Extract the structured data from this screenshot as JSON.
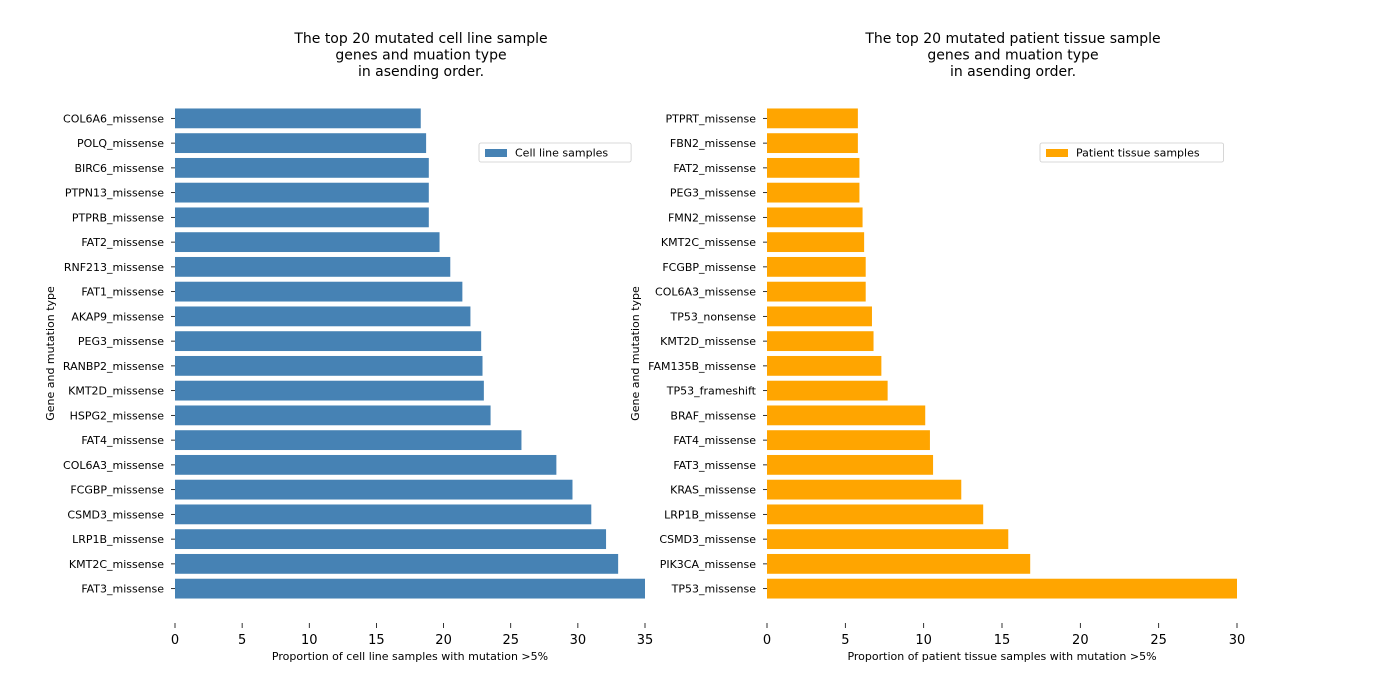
{
  "chart_data": [
    {
      "type": "bar",
      "orientation": "horizontal",
      "title": [
        "The top 20 mutated cell line sample",
        "genes and muation type",
        "in asending order."
      ],
      "xlabel": "Proportion of cell line samples with mutation >5%",
      "ylabel": "Gene and mutation type",
      "xlim": [
        0,
        35
      ],
      "xticks": [
        0,
        5,
        10,
        15,
        20,
        25,
        30,
        35
      ],
      "legend": {
        "label": "Cell line samples",
        "placement": "upper-right"
      },
      "color": "#4682b4",
      "grid": false,
      "categories": [
        "COL6A6_missense",
        "POLQ_missense",
        "BIRC6_missense",
        "PTPN13_missense",
        "PTPRB_missense",
        "FAT2_missense",
        "RNF213_missense",
        "FAT1_missense",
        "AKAP9_missense",
        "PEG3_missense",
        "RANBP2_missense",
        "KMT2D_missense",
        "HSPG2_missense",
        "FAT4_missense",
        "COL6A3_missense",
        "FCGBP_missense",
        "CSMD3_missense",
        "LRP1B_missense",
        "KMT2C_missense",
        "FAT3_missense"
      ],
      "values": [
        18.3,
        18.7,
        18.9,
        18.9,
        18.9,
        19.7,
        20.5,
        21.4,
        22.0,
        22.8,
        22.9,
        23.0,
        23.5,
        25.8,
        28.4,
        29.6,
        31.0,
        32.1,
        33.0,
        35.0
      ]
    },
    {
      "type": "bar",
      "orientation": "horizontal",
      "title": [
        "The top 20 mutated patient tissue sample",
        "genes and muation type",
        "in asending order."
      ],
      "xlabel": "Proportion of patient tissue samples with mutation >5%",
      "ylabel": "Gene and mutation type",
      "xlim": [
        0,
        30
      ],
      "xticks": [
        0,
        5,
        10,
        15,
        20,
        25,
        30
      ],
      "legend": {
        "label": "Patient tissue samples",
        "placement": "upper-right"
      },
      "color": "#ffa500",
      "grid": false,
      "categories": [
        "PTPRT_missense",
        "FBN2_missense",
        "FAT2_missense",
        "PEG3_missense",
        "FMN2_missense",
        "KMT2C_missense",
        "FCGBP_missense",
        "COL6A3_missense",
        "TP53_nonsense",
        "KMT2D_missense",
        "FAM135B_missense",
        "TP53_frameshift",
        "BRAF_missense",
        "FAT4_missense",
        "FAT3_missense",
        "KRAS_missense",
        "LRP1B_missense",
        "CSMD3_missense",
        "PIK3CA_missense",
        "TP53_missense"
      ],
      "values": [
        5.8,
        5.8,
        5.9,
        5.9,
        6.1,
        6.2,
        6.3,
        6.3,
        6.7,
        6.8,
        7.3,
        7.7,
        10.1,
        10.4,
        10.6,
        12.4,
        13.8,
        15.4,
        16.8,
        30.0
      ]
    }
  ]
}
